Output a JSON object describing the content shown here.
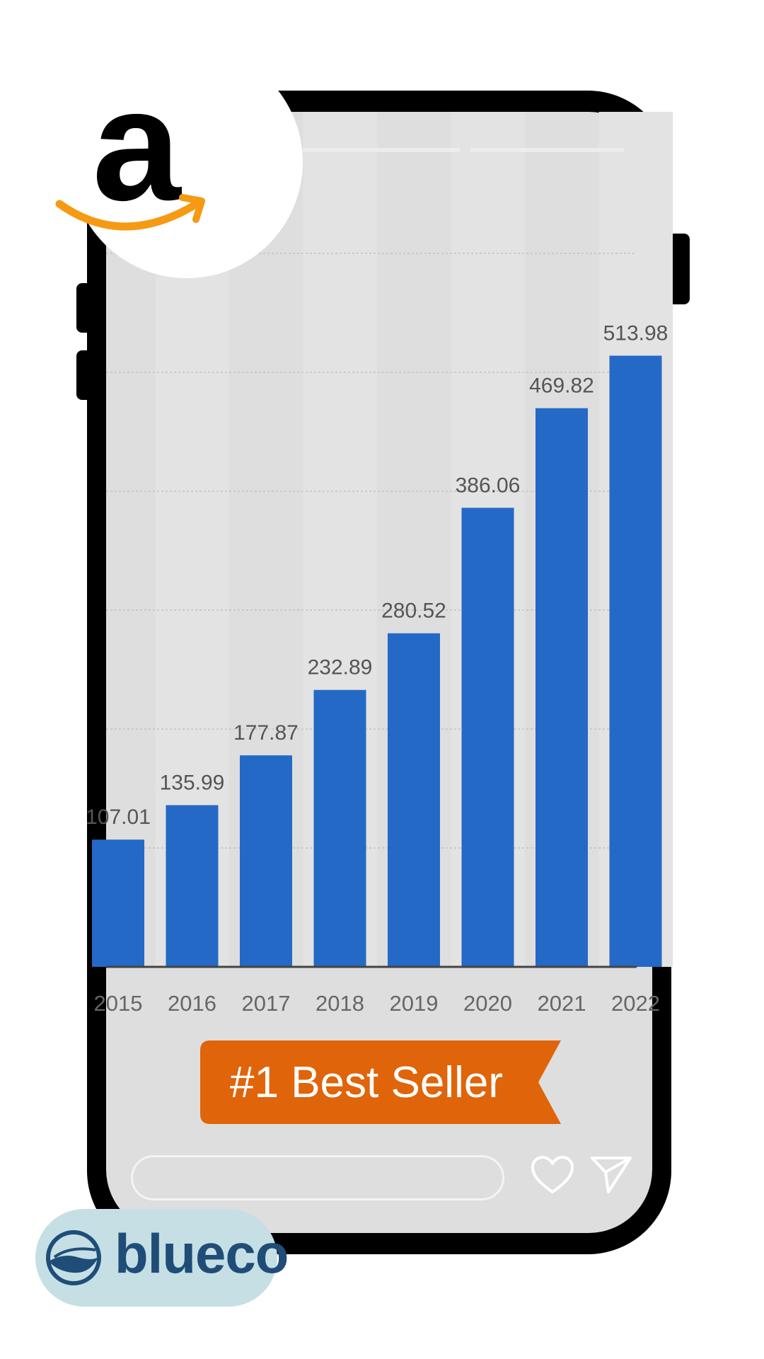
{
  "chart_data": {
    "type": "bar",
    "categories": [
      "2015",
      "2016",
      "2017",
      "2018",
      "2019",
      "2020",
      "2021",
      "2022"
    ],
    "values": [
      107.01,
      135.99,
      177.87,
      232.89,
      280.52,
      386.06,
      469.82,
      513.98
    ],
    "value_labels": [
      "107.01",
      "135.99",
      "177.87",
      "232.89",
      "280.52",
      "386.06",
      "469.82",
      "513.98"
    ],
    "title": "",
    "xlabel": "",
    "ylabel": "",
    "ylim": [
      0,
      600
    ],
    "grid": true,
    "bar_color": "#2469c6"
  },
  "badge": {
    "label": "#1 Best Seller",
    "color": "#e06409"
  },
  "actions": {
    "like_icon": "heart-icon",
    "share_icon": "send-icon"
  },
  "brands": {
    "amazon_logo": "amazon-logo",
    "amazon_letter": "a",
    "amazon_smile_color": "#f59a12",
    "blueco_name": "blueco",
    "blueco_color": "#1f4d78"
  }
}
